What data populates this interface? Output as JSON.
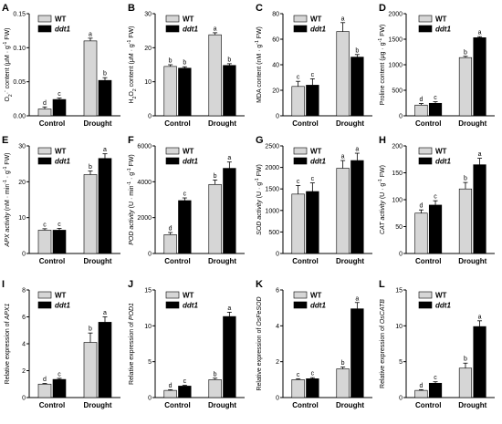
{
  "colors": {
    "wt": "#d6d6d6",
    "mut": "#000000",
    "axis": "#000000"
  },
  "legend": [
    "WT",
    "ddt1"
  ],
  "chart_data": [
    {
      "panel": "A",
      "type": "bar",
      "ylabel_parts": [
        {
          "t": "O"
        },
        {
          "t": "2",
          "sub": true
        },
        {
          "t": "·"
        },
        {
          "sup": true,
          "t": "-"
        },
        {
          "t": " content (μM · g"
        },
        {
          "t": "-1",
          "sup": true
        },
        {
          "t": " FW)"
        }
      ],
      "ylim": [
        0,
        0.15
      ],
      "yticks": [
        "0.00",
        "0.05",
        "0.10",
        "0.15"
      ],
      "ytick_values": [
        0,
        0.05,
        0.1,
        0.15
      ],
      "categories": [
        "Control",
        "Drought"
      ],
      "series": [
        {
          "name": "WT",
          "values": [
            0.01,
            0.11
          ],
          "errors": [
            0.003,
            0.004
          ],
          "letters": [
            "d",
            "a"
          ]
        },
        {
          "name": "ddt1",
          "values": [
            0.024,
            0.052
          ],
          "errors": [
            0.002,
            0.004
          ],
          "letters": [
            "c",
            "b"
          ]
        }
      ]
    },
    {
      "panel": "B",
      "type": "bar",
      "ylabel_parts": [
        {
          "t": "H"
        },
        {
          "t": "2",
          "sub": true
        },
        {
          "t": "O"
        },
        {
          "t": "2",
          "sub": true
        },
        {
          "t": " content (μM · g"
        },
        {
          "t": "-1",
          "sup": true
        },
        {
          "t": " FW)"
        }
      ],
      "ylim": [
        0,
        30
      ],
      "yticks": [
        "0",
        "10",
        "20",
        "30"
      ],
      "ytick_values": [
        0,
        10,
        20,
        30
      ],
      "categories": [
        "Control",
        "Drought"
      ],
      "series": [
        {
          "name": "WT",
          "values": [
            14.5,
            23.8
          ],
          "errors": [
            0.5,
            0.6
          ],
          "letters": [
            "b",
            "a"
          ]
        },
        {
          "name": "ddt1",
          "values": [
            14.0,
            14.8
          ],
          "errors": [
            0.4,
            0.5
          ],
          "letters": [
            "b",
            "b"
          ]
        }
      ]
    },
    {
      "panel": "C",
      "type": "bar",
      "ylabel_parts": [
        {
          "t": "MDA content (nM · g"
        },
        {
          "t": "-1",
          "sup": true
        },
        {
          "t": " FW)"
        }
      ],
      "ylim": [
        0,
        80
      ],
      "yticks": [
        "0",
        "20",
        "40",
        "60",
        "80"
      ],
      "ytick_values": [
        0,
        20,
        40,
        60,
        80
      ],
      "categories": [
        "Control",
        "Drought"
      ],
      "series": [
        {
          "name": "WT",
          "values": [
            23,
            66
          ],
          "errors": [
            4,
            7
          ],
          "letters": [
            "c",
            "a"
          ]
        },
        {
          "name": "ddt1",
          "values": [
            24,
            46
          ],
          "errors": [
            5,
            2
          ],
          "letters": [
            "c",
            "b"
          ]
        }
      ]
    },
    {
      "panel": "D",
      "type": "bar",
      "ylabel_parts": [
        {
          "t": "Proline content (μg · g"
        },
        {
          "t": "-1",
          "sup": true
        },
        {
          "t": " FW)"
        }
      ],
      "ylim": [
        0,
        2000
      ],
      "yticks": [
        "0",
        "500",
        "1000",
        "1500",
        "2000"
      ],
      "ytick_values": [
        0,
        500,
        1000,
        1500,
        2000
      ],
      "categories": [
        "Control",
        "Drought"
      ],
      "series": [
        {
          "name": "WT",
          "values": [
            210,
            1140
          ],
          "errors": [
            30,
            25
          ],
          "letters": [
            "d",
            "b"
          ]
        },
        {
          "name": "ddt1",
          "values": [
            245,
            1530
          ],
          "errors": [
            30,
            20
          ],
          "letters": [
            "c",
            "a"
          ]
        }
      ]
    },
    {
      "panel": "E",
      "type": "bar",
      "ylabel_parts": [
        {
          "t": "APX ",
          "it": true
        },
        {
          "t": "activity",
          "it": true
        },
        {
          "t": " (nM · min"
        },
        {
          "t": "-1",
          "sup": true
        },
        {
          "t": " · g"
        },
        {
          "t": "-1",
          "sup": true
        },
        {
          "t": " FW)"
        }
      ],
      "ylim": [
        0,
        30
      ],
      "yticks": [
        "0",
        "10",
        "20",
        "30"
      ],
      "ytick_values": [
        0,
        10,
        20,
        30
      ],
      "categories": [
        "Control",
        "Drought"
      ],
      "series": [
        {
          "name": "WT",
          "values": [
            6.5,
            22
          ],
          "errors": [
            0.4,
            1.0
          ],
          "letters": [
            "c",
            "b"
          ]
        },
        {
          "name": "ddt1",
          "values": [
            6.5,
            26.5
          ],
          "errors": [
            0.5,
            1.3
          ],
          "letters": [
            "c",
            "a"
          ]
        }
      ]
    },
    {
      "panel": "F",
      "type": "bar",
      "ylabel_parts": [
        {
          "t": "POD ",
          "it": true
        },
        {
          "t": "activity",
          "it": true
        },
        {
          "t": " (U · min"
        },
        {
          "t": "-1",
          "sup": true
        },
        {
          "t": " · g"
        },
        {
          "t": "-1",
          "sup": true
        },
        {
          "t": " FW)"
        }
      ],
      "ylim": [
        0,
        6000
      ],
      "yticks": [
        "0",
        "2000",
        "4000",
        "6000"
      ],
      "ytick_values": [
        0,
        2000,
        4000,
        6000
      ],
      "categories": [
        "Control",
        "Drought"
      ],
      "series": [
        {
          "name": "WT",
          "values": [
            1050,
            3850
          ],
          "errors": [
            120,
            250
          ],
          "letters": [
            "d",
            "b"
          ]
        },
        {
          "name": "ddt1",
          "values": [
            2950,
            4750
          ],
          "errors": [
            150,
            350
          ],
          "letters": [
            "c",
            "a"
          ]
        }
      ]
    },
    {
      "panel": "G",
      "type": "bar",
      "ylabel_parts": [
        {
          "t": "SOD ",
          "it": true
        },
        {
          "t": "activity",
          "it": true
        },
        {
          "t": " (U · g"
        },
        {
          "t": "-1",
          "sup": true
        },
        {
          "t": " FW)"
        }
      ],
      "ylim": [
        0,
        2500
      ],
      "yticks": [
        "0",
        "500",
        "1000",
        "1500",
        "2000",
        "2500"
      ],
      "ytick_values": [
        0,
        500,
        1000,
        1500,
        2000,
        2500
      ],
      "categories": [
        "Control",
        "Drought"
      ],
      "series": [
        {
          "name": "WT",
          "values": [
            1380,
            1980
          ],
          "errors": [
            200,
            180
          ],
          "letters": [
            "c",
            "a"
          ]
        },
        {
          "name": "ddt1",
          "values": [
            1440,
            2160
          ],
          "errors": [
            200,
            170
          ],
          "letters": [
            "c",
            "a"
          ]
        }
      ]
    },
    {
      "panel": "H",
      "type": "bar",
      "ylabel_parts": [
        {
          "t": "CAT ",
          "it": true
        },
        {
          "t": "activity",
          "it": true
        },
        {
          "t": " (U · g"
        },
        {
          "t": "-1",
          "sup": true
        },
        {
          "t": " FW)"
        }
      ],
      "ylim": [
        0,
        200
      ],
      "yticks": [
        "0",
        "50",
        "100",
        "150",
        "200"
      ],
      "ytick_values": [
        0,
        50,
        100,
        150,
        200
      ],
      "categories": [
        "Control",
        "Drought"
      ],
      "series": [
        {
          "name": "WT",
          "values": [
            75,
            120
          ],
          "errors": [
            6,
            12
          ],
          "letters": [
            "d",
            "b"
          ]
        },
        {
          "name": "ddt1",
          "values": [
            90,
            165
          ],
          "errors": [
            8,
            12
          ],
          "letters": [
            "c",
            "a"
          ]
        }
      ]
    },
    {
      "panel": "I",
      "type": "bar",
      "ylabel_parts": [
        {
          "t": "Relative expression of "
        },
        {
          "t": "APX1",
          "it": true
        }
      ],
      "ylim": [
        0,
        8
      ],
      "yticks": [
        "0",
        "2",
        "4",
        "6",
        "8"
      ],
      "ytick_values": [
        0,
        2,
        4,
        6,
        8
      ],
      "categories": [
        "Control",
        "Drought"
      ],
      "series": [
        {
          "name": "WT",
          "values": [
            1.0,
            4.1
          ],
          "errors": [
            0.05,
            0.7
          ],
          "letters": [
            "d",
            "b"
          ]
        },
        {
          "name": "ddt1",
          "values": [
            1.35,
            5.6
          ],
          "errors": [
            0.08,
            0.4
          ],
          "letters": [
            "c",
            "a"
          ]
        }
      ]
    },
    {
      "panel": "J",
      "type": "bar",
      "ylabel_parts": [
        {
          "t": "Relative expression of "
        },
        {
          "t": "POD1",
          "it": true
        }
      ],
      "ylim": [
        0,
        15
      ],
      "yticks": [
        "0",
        "5",
        "10",
        "15"
      ],
      "ytick_values": [
        0,
        5,
        10,
        15
      ],
      "categories": [
        "Control",
        "Drought"
      ],
      "series": [
        {
          "name": "WT",
          "values": [
            1.0,
            2.5
          ],
          "errors": [
            0.1,
            0.2
          ],
          "letters": [
            "d",
            "b"
          ]
        },
        {
          "name": "ddt1",
          "values": [
            1.6,
            11.3
          ],
          "errors": [
            0.1,
            0.6
          ],
          "letters": [
            "c",
            "a"
          ]
        }
      ]
    },
    {
      "panel": "K",
      "type": "bar",
      "ylabel_parts": [
        {
          "t": "Relative expression of "
        },
        {
          "t": "OsFeSOD",
          "it": true
        }
      ],
      "ylim": [
        0,
        6
      ],
      "yticks": [
        "0",
        "2",
        "4",
        "6"
      ],
      "ytick_values": [
        0,
        2,
        4,
        6
      ],
      "categories": [
        "Control",
        "Drought"
      ],
      "series": [
        {
          "name": "WT",
          "values": [
            1.0,
            1.6
          ],
          "errors": [
            0.05,
            0.1
          ],
          "letters": [
            "c",
            "b"
          ]
        },
        {
          "name": "ddt1",
          "values": [
            1.05,
            4.95
          ],
          "errors": [
            0.06,
            0.35
          ],
          "letters": [
            "c",
            "a"
          ]
        }
      ]
    },
    {
      "panel": "L",
      "type": "bar",
      "ylabel_parts": [
        {
          "t": "Relative expression of "
        },
        {
          "t": "OsCATB",
          "it": true
        }
      ],
      "ylim": [
        0,
        15
      ],
      "yticks": [
        "0",
        "5",
        "10",
        "15"
      ],
      "ytick_values": [
        0,
        5,
        10,
        15
      ],
      "categories": [
        "Control",
        "Drought"
      ],
      "series": [
        {
          "name": "WT",
          "values": [
            1.0,
            4.1
          ],
          "errors": [
            0.1,
            0.7
          ],
          "letters": [
            "d",
            "b"
          ]
        },
        {
          "name": "ddt1",
          "values": [
            2.0,
            9.9
          ],
          "errors": [
            0.2,
            0.8
          ],
          "letters": [
            "c",
            "a"
          ]
        }
      ]
    }
  ]
}
